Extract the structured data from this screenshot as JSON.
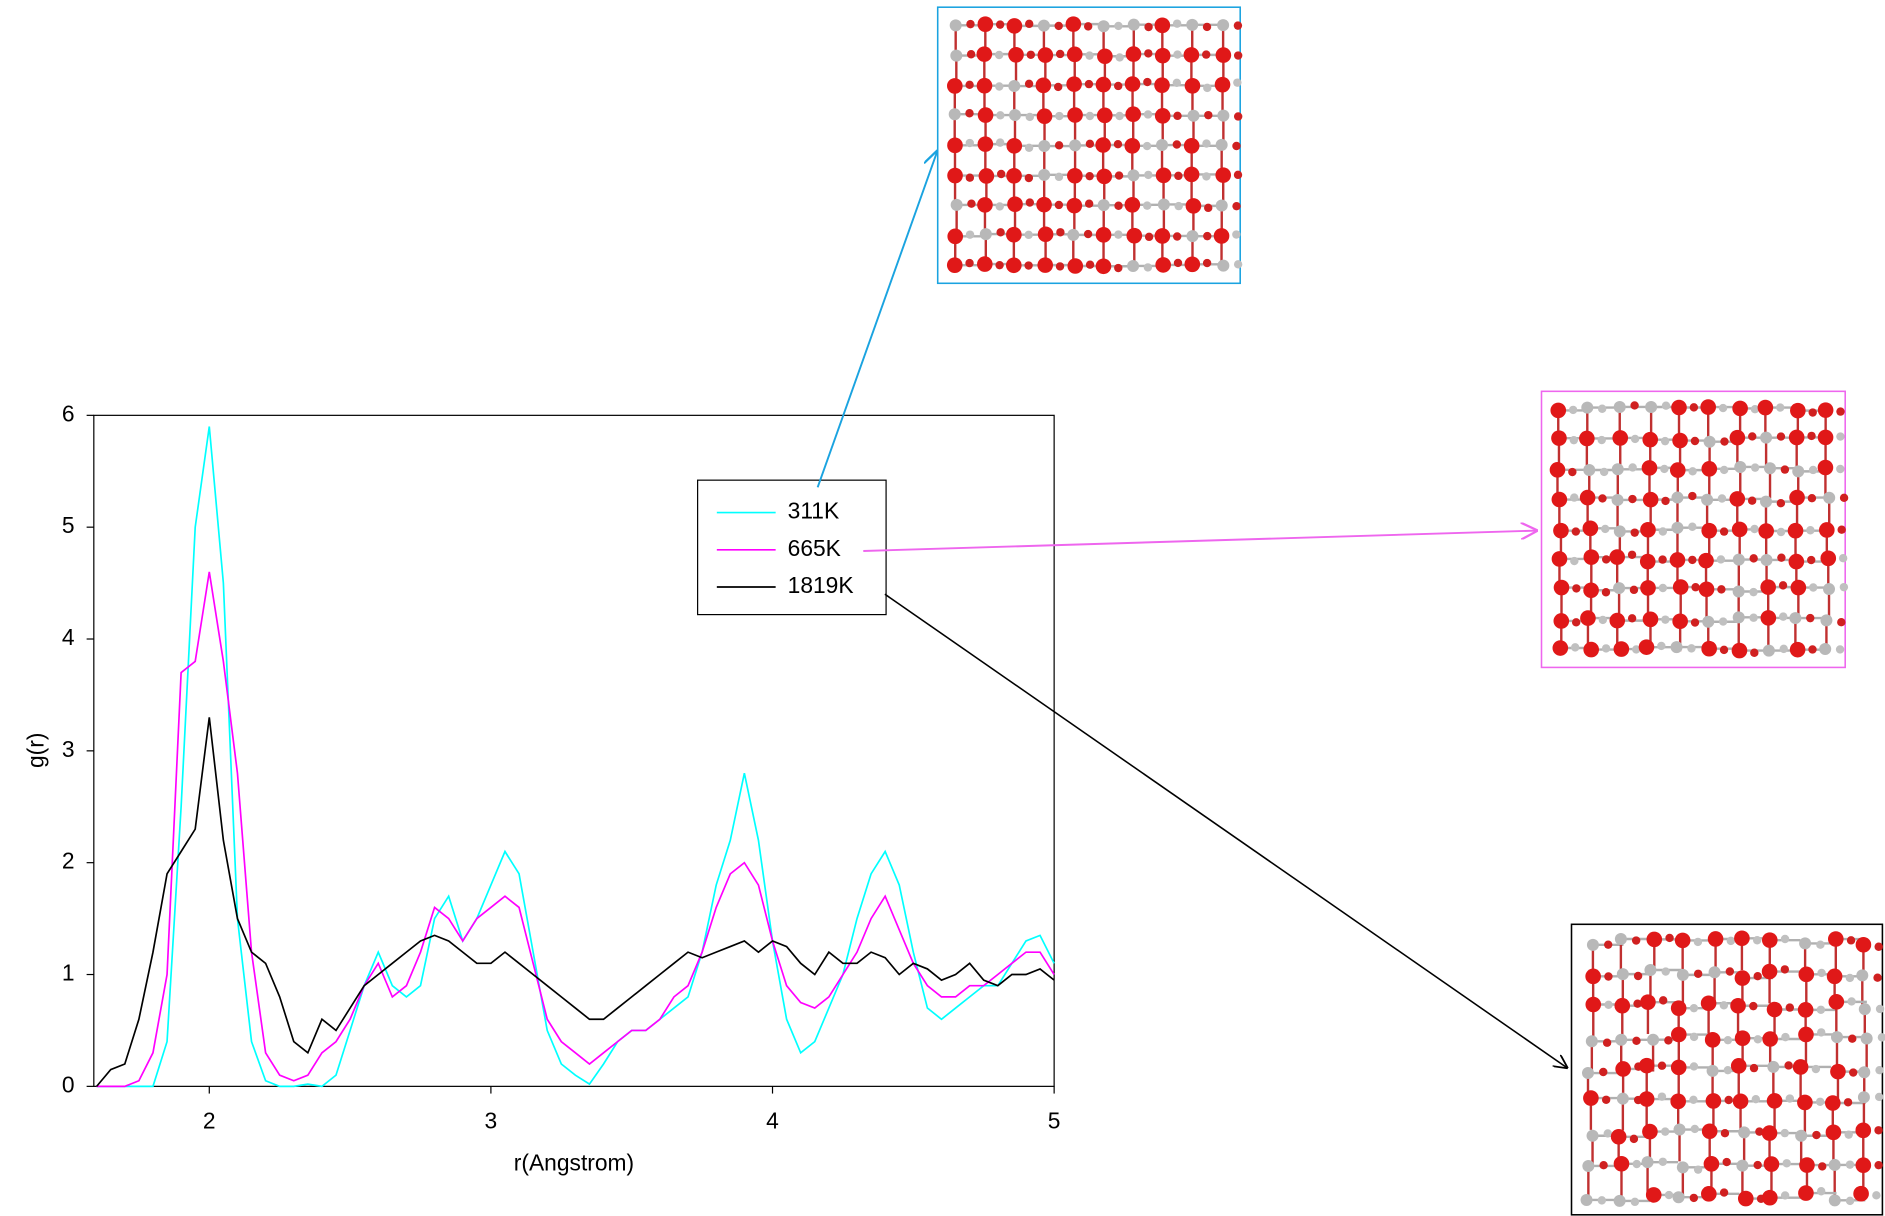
{
  "chart_data": {
    "type": "line",
    "x_label": "r(Angstrom)",
    "y_label": "g(r)",
    "x": [
      1.6,
      1.65,
      1.7,
      1.75,
      1.8,
      1.85,
      1.9,
      1.95,
      2.0,
      2.05,
      2.1,
      2.15,
      2.2,
      2.25,
      2.3,
      2.35,
      2.4,
      2.45,
      2.5,
      2.55,
      2.6,
      2.65,
      2.7,
      2.75,
      2.8,
      2.85,
      2.9,
      2.95,
      3.0,
      3.05,
      3.1,
      3.15,
      3.2,
      3.25,
      3.3,
      3.35,
      3.4,
      3.45,
      3.5,
      3.55,
      3.6,
      3.65,
      3.7,
      3.75,
      3.8,
      3.85,
      3.9,
      3.95,
      4.0,
      4.05,
      4.1,
      4.15,
      4.2,
      4.25,
      4.3,
      4.35,
      4.4,
      4.45,
      4.5,
      4.55,
      4.6,
      4.65,
      4.7,
      4.75,
      4.8,
      4.85,
      4.9,
      4.95,
      5.0
    ],
    "series": [
      {
        "name": "311K",
        "color": "#00ffff",
        "values": [
          0,
          0,
          0,
          0,
          0,
          0.4,
          2.5,
          5.0,
          5.9,
          4.5,
          1.5,
          0.4,
          0.05,
          0,
          0,
          0.02,
          0,
          0.1,
          0.5,
          0.9,
          1.2,
          0.9,
          0.8,
          0.9,
          1.5,
          1.7,
          1.3,
          1.5,
          1.8,
          2.1,
          1.9,
          1.2,
          0.5,
          0.2,
          0.1,
          0.02,
          0.2,
          0.4,
          0.5,
          0.5,
          0.6,
          0.7,
          0.8,
          1.2,
          1.8,
          2.2,
          2.8,
          2.2,
          1.3,
          0.6,
          0.3,
          0.4,
          0.7,
          1.0,
          1.5,
          1.9,
          2.1,
          1.8,
          1.2,
          0.7,
          0.6,
          0.7,
          0.8,
          0.9,
          0.9,
          1.1,
          1.3,
          1.35,
          1.1
        ]
      },
      {
        "name": "665K",
        "color": "#ff00ff",
        "values": [
          0,
          0,
          0,
          0.05,
          0.3,
          1.0,
          3.7,
          3.8,
          4.6,
          3.8,
          2.8,
          1.2,
          0.3,
          0.1,
          0.05,
          0.1,
          0.3,
          0.4,
          0.6,
          0.9,
          1.1,
          0.8,
          0.9,
          1.2,
          1.6,
          1.5,
          1.3,
          1.5,
          1.6,
          1.7,
          1.6,
          1.1,
          0.6,
          0.4,
          0.3,
          0.2,
          0.3,
          0.4,
          0.5,
          0.5,
          0.6,
          0.8,
          0.9,
          1.2,
          1.6,
          1.9,
          2.0,
          1.8,
          1.3,
          0.9,
          0.75,
          0.7,
          0.8,
          1.0,
          1.2,
          1.5,
          1.7,
          1.4,
          1.1,
          0.9,
          0.8,
          0.8,
          0.9,
          0.9,
          1.0,
          1.1,
          1.2,
          1.2,
          1.0
        ]
      },
      {
        "name": "1819K",
        "color": "#000000",
        "values": [
          0,
          0.15,
          0.2,
          0.6,
          1.2,
          1.9,
          2.1,
          2.3,
          3.3,
          2.2,
          1.5,
          1.2,
          1.1,
          0.8,
          0.4,
          0.3,
          0.6,
          0.5,
          0.7,
          0.9,
          1.0,
          1.1,
          1.2,
          1.3,
          1.35,
          1.3,
          1.2,
          1.1,
          1.1,
          1.2,
          1.1,
          1.0,
          0.9,
          0.8,
          0.7,
          0.6,
          0.6,
          0.7,
          0.8,
          0.9,
          1.0,
          1.1,
          1.2,
          1.15,
          1.2,
          1.25,
          1.3,
          1.2,
          1.3,
          1.25,
          1.1,
          1.0,
          1.2,
          1.1,
          1.1,
          1.2,
          1.15,
          1.0,
          1.1,
          1.05,
          0.95,
          1.0,
          1.1,
          0.95,
          0.9,
          1.0,
          1.0,
          1.05,
          0.95
        ]
      }
    ],
    "xlim": [
      1.59,
      5
    ],
    "xticks": [
      2,
      3,
      4,
      5
    ],
    "ylim": [
      0,
      6
    ],
    "yticks": [
      0,
      1,
      2,
      3,
      4,
      5,
      6
    ],
    "grid": false
  }
}
